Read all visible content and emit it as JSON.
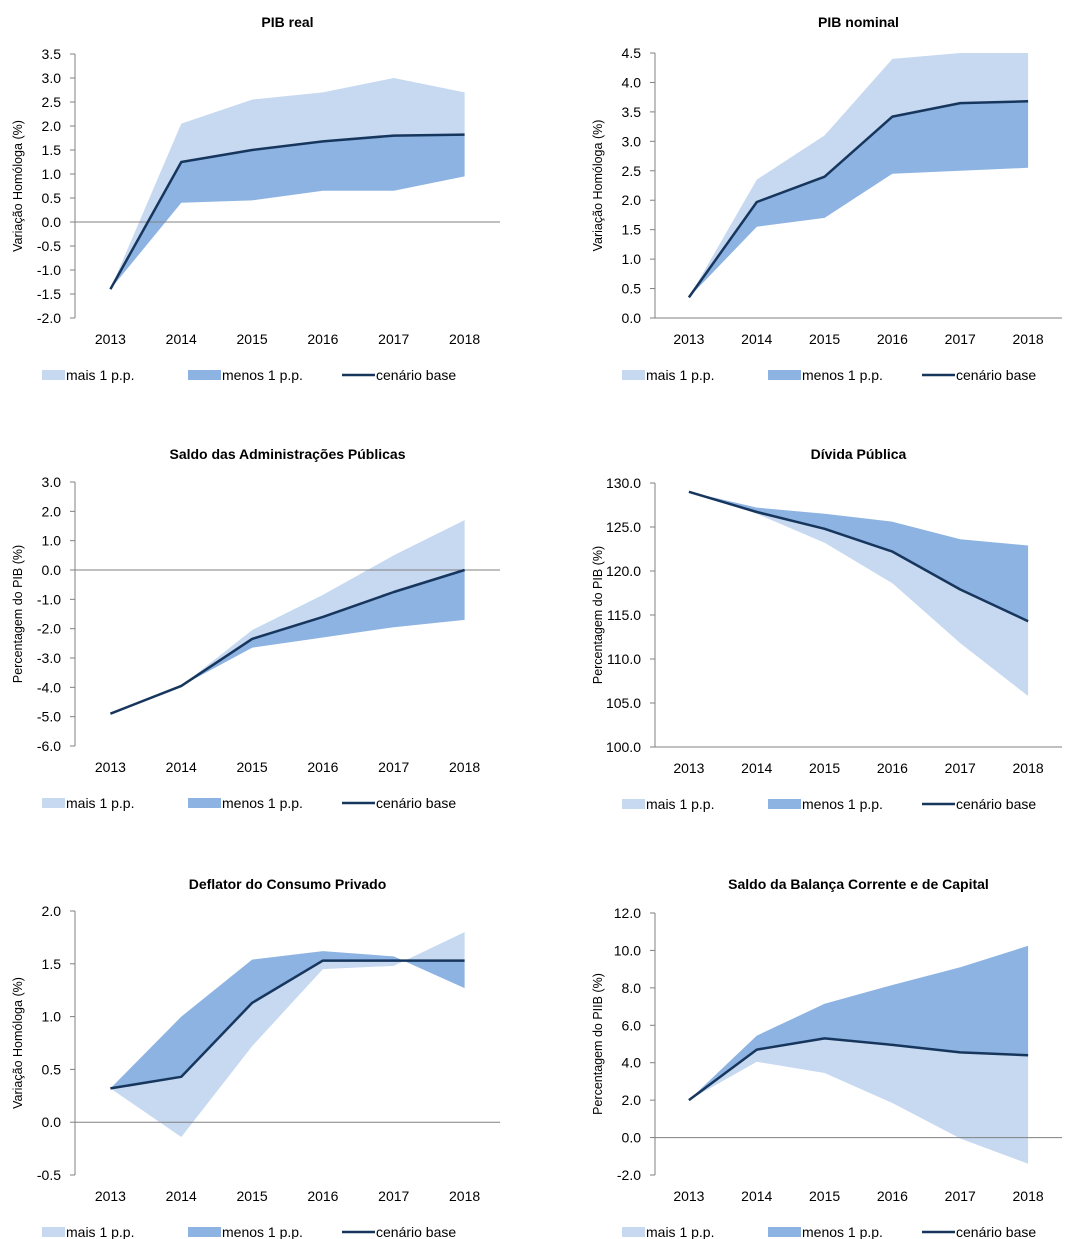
{
  "colors": {
    "upper_band": "#c6d9f1",
    "lower_band": "#8db3e2",
    "base_line": "#17365d",
    "axis": "#808080"
  },
  "legend": {
    "upper": "mais 1 p.p.",
    "lower": "menos 1 p.p.",
    "base": "cenário base"
  },
  "chart_data": [
    {
      "type": "area",
      "title": "PIB real",
      "ylabel": "Variação Homóloga (%)",
      "categories": [
        "2013",
        "2014",
        "2015",
        "2016",
        "2017",
        "2018"
      ],
      "ylim": [
        -2.0,
        3.5
      ],
      "yticks": [
        "3.5",
        "3.0",
        "2.5",
        "2.0",
        "1.5",
        "1.0",
        "0.5",
        "0.0",
        "-0.5",
        "-1.0",
        "-1.5",
        "-2.0"
      ],
      "zero_line": true,
      "grid": false,
      "legend_position": "bottom",
      "series": [
        {
          "name": "mais 1 p.p.",
          "values": [
            -1.4,
            2.05,
            2.55,
            2.7,
            3.0,
            2.7
          ]
        },
        {
          "name": "menos 1 p.p.",
          "values": [
            -1.4,
            0.4,
            0.45,
            0.65,
            0.65,
            0.95
          ]
        },
        {
          "name": "cenário base",
          "values": [
            -1.4,
            1.25,
            1.5,
            1.68,
            1.8,
            1.82
          ]
        }
      ]
    },
    {
      "type": "area",
      "title": "PIB nominal",
      "ylabel": "Variação Homóloga (%)",
      "categories": [
        "2013",
        "2014",
        "2015",
        "2016",
        "2017",
        "2018"
      ],
      "ylim": [
        0.0,
        4.5
      ],
      "yticks": [
        "4.5",
        "4.0",
        "3.5",
        "3.0",
        "2.5",
        "2.0",
        "1.5",
        "1.0",
        "0.5",
        "0.0"
      ],
      "zero_line": false,
      "grid": false,
      "legend_position": "bottom",
      "series": [
        {
          "name": "mais 1 p.p.",
          "values": [
            0.35,
            2.35,
            3.1,
            4.4,
            4.5,
            4.5
          ]
        },
        {
          "name": "menos 1 p.p.",
          "values": [
            0.35,
            1.55,
            1.7,
            2.45,
            2.5,
            2.55
          ]
        },
        {
          "name": "cenário base",
          "values": [
            0.35,
            1.97,
            2.4,
            3.42,
            3.65,
            3.68
          ]
        }
      ]
    },
    {
      "type": "area",
      "title": "Saldo das Administrações Públicas",
      "ylabel": "Percentagem do PIB (%)",
      "categories": [
        "2013",
        "2014",
        "2015",
        "2016",
        "2017",
        "2018"
      ],
      "ylim": [
        -6.0,
        3.0
      ],
      "yticks": [
        "3.0",
        "2.0",
        "1.0",
        "0.0",
        "-1.0",
        "-2.0",
        "-3.0",
        "-4.0",
        "-5.0",
        "-6.0"
      ],
      "zero_line": true,
      "grid": false,
      "legend_position": "bottom",
      "series": [
        {
          "name": "mais 1 p.p.",
          "values": [
            -4.9,
            -3.95,
            -2.05,
            -0.85,
            0.5,
            1.7
          ]
        },
        {
          "name": "menos 1 p.p.",
          "values": [
            -4.9,
            -3.95,
            -2.65,
            -2.3,
            -1.95,
            -1.7
          ]
        },
        {
          "name": "cenário base",
          "values": [
            -4.9,
            -3.95,
            -2.35,
            -1.6,
            -0.75,
            0.0
          ]
        }
      ]
    },
    {
      "type": "area",
      "title": "Dívida Pública",
      "ylabel": "Percentagem do PIB (%)",
      "categories": [
        "2013",
        "2014",
        "2015",
        "2016",
        "2017",
        "2018"
      ],
      "ylim": [
        100.0,
        130.0
      ],
      "yticks": [
        "130.0",
        "125.0",
        "120.0",
        "115.0",
        "110.0",
        "105.0",
        "100.0"
      ],
      "zero_line": false,
      "grid": false,
      "legend_position": "bottom",
      "series": [
        {
          "name": "mais 1 p.p.",
          "values": [
            129.0,
            126.5,
            123.2,
            118.6,
            111.8,
            105.8
          ]
        },
        {
          "name": "menos 1 p.p.",
          "values": [
            129.0,
            127.2,
            126.5,
            125.6,
            123.6,
            122.9
          ]
        },
        {
          "name": "cenário base",
          "values": [
            129.0,
            126.7,
            124.8,
            122.2,
            117.9,
            114.3
          ]
        }
      ]
    },
    {
      "type": "area",
      "title": "Deflator do Consumo Privado",
      "ylabel": "Variação Homóloga (%)",
      "categories": [
        "2013",
        "2014",
        "2015",
        "2016",
        "2017",
        "2018"
      ],
      "ylim": [
        -0.5,
        2.0
      ],
      "yticks": [
        "2.0",
        "1.5",
        "1.0",
        "0.5",
        "0.0",
        "-0.5"
      ],
      "zero_line": true,
      "grid": false,
      "legend_position": "bottom",
      "series": [
        {
          "name": "mais 1 p.p.",
          "values": [
            0.32,
            -0.14,
            0.72,
            1.45,
            1.48,
            1.8
          ]
        },
        {
          "name": "menos 1 p.p.",
          "values": [
            0.32,
            1.0,
            1.54,
            1.62,
            1.57,
            1.27
          ]
        },
        {
          "name": "cenário base",
          "values": [
            0.32,
            0.43,
            1.13,
            1.53,
            1.53,
            1.53
          ]
        }
      ]
    },
    {
      "type": "area",
      "title": "Saldo da Balança Corrente e de Capital",
      "ylabel": "Percentagem do PIIB (%)",
      "categories": [
        "2013",
        "2014",
        "2015",
        "2016",
        "2017",
        "2018"
      ],
      "ylim": [
        -2.0,
        12.0
      ],
      "yticks": [
        "12.0",
        "10.0",
        "8.0",
        "6.0",
        "4.0",
        "2.0",
        "0.0",
        "-2.0"
      ],
      "zero_line": true,
      "grid": false,
      "legend_position": "bottom",
      "series": [
        {
          "name": "mais 1 p.p.",
          "values": [
            2.0,
            4.05,
            3.45,
            1.85,
            -0.05,
            -1.4
          ]
        },
        {
          "name": "menos 1 p.p.",
          "values": [
            2.0,
            5.45,
            7.15,
            8.15,
            9.1,
            10.25
          ]
        },
        {
          "name": "cenário base",
          "values": [
            2.0,
            4.7,
            5.3,
            4.95,
            4.55,
            4.4
          ]
        }
      ]
    }
  ]
}
